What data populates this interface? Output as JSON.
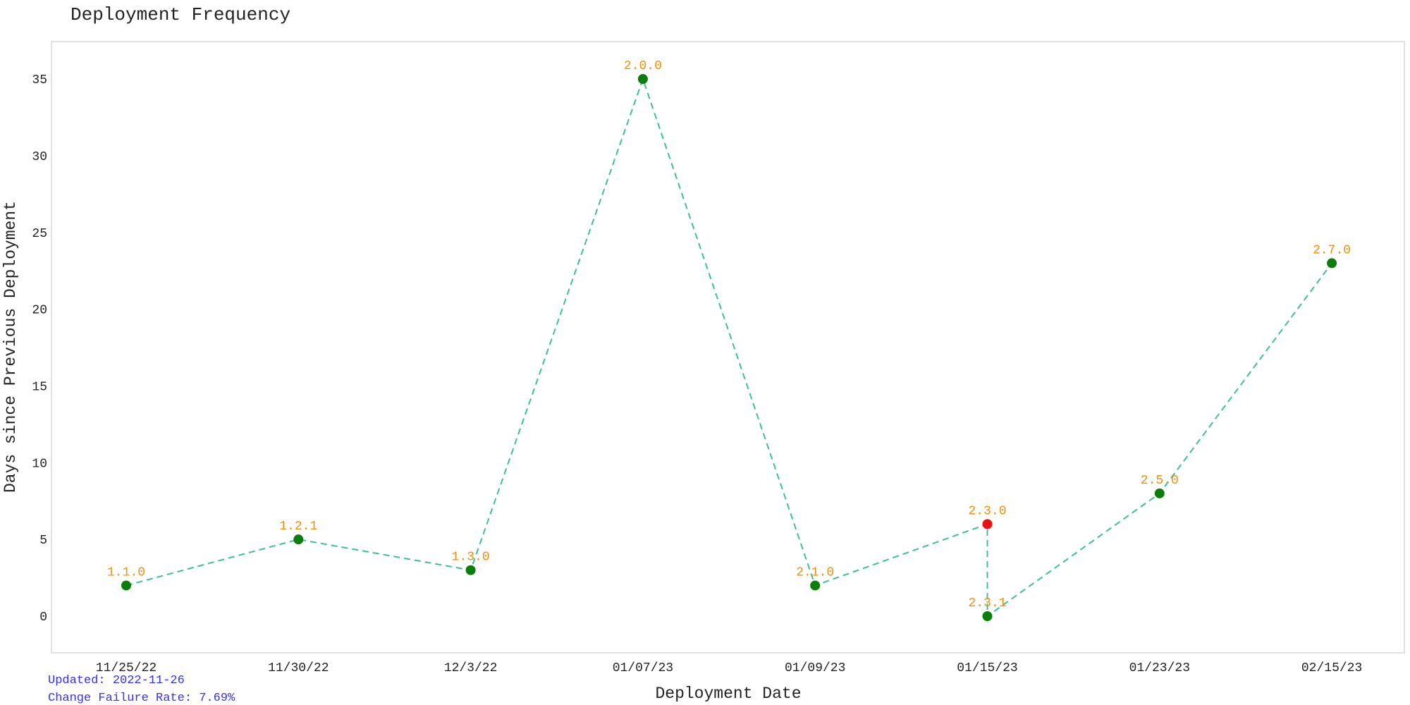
{
  "header": {
    "title": "Deployment Frequency"
  },
  "footer": {
    "updated": "Updated: 2022-11-26",
    "change_failure_rate": "Change Failure Rate: 7.69%"
  },
  "colors": {
    "line": "#3dbf95",
    "success_point": "#0a7d0a",
    "failure_point": "#ee1111",
    "version_label": "#f0900a",
    "axis_text": "#222222",
    "frame": "#d8d8d8",
    "footnote": "#3333ee"
  },
  "chart_data": {
    "type": "line",
    "title": "Deployment Frequency",
    "xlabel": "Deployment Date",
    "ylabel": "Days since Previous Deployment",
    "x_ticks": [
      "11/25/22",
      "11/30/22",
      "12/3/22",
      "01/07/23",
      "01/09/23",
      "01/15/23",
      "01/23/23",
      "02/15/23"
    ],
    "y_ticks": [
      0,
      5,
      10,
      15,
      20,
      25,
      30,
      35
    ],
    "ylim": [
      -2.4,
      37.5
    ],
    "grid": false,
    "line_style": "dashed",
    "points": [
      {
        "x": "11/25/22",
        "y": 2,
        "version": "1.1.0",
        "status": "success"
      },
      {
        "x": "11/30/22",
        "y": 5,
        "version": "1.2.1",
        "status": "success"
      },
      {
        "x": "12/3/22",
        "y": 3,
        "version": "1.3.0",
        "status": "success"
      },
      {
        "x": "01/07/23",
        "y": 35,
        "version": "2.0.0",
        "status": "success"
      },
      {
        "x": "01/09/23",
        "y": 2,
        "version": "2.1.0",
        "status": "success"
      },
      {
        "x": "01/15/23",
        "y": 6,
        "version": "2.3.0",
        "status": "failure"
      },
      {
        "x": "01/15/23",
        "y": 0,
        "version": "2.3.1",
        "status": "success"
      },
      {
        "x": "01/23/23",
        "y": 8,
        "version": "2.5.0",
        "status": "success"
      },
      {
        "x": "02/15/23",
        "y": 23,
        "version": "2.7.0",
        "status": "success"
      }
    ]
  }
}
